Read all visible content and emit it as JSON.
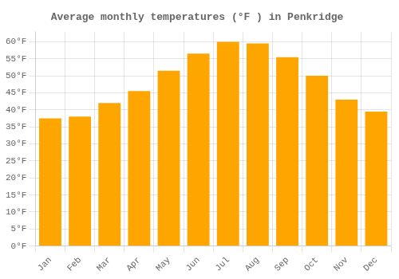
{
  "chart_data": {
    "type": "bar",
    "title": "Average monthly temperatures (°F ) in Penkridge",
    "categories": [
      "Jan",
      "Feb",
      "Mar",
      "Apr",
      "May",
      "Jun",
      "Jul",
      "Aug",
      "Sep",
      "Oct",
      "Nov",
      "Dec"
    ],
    "values": [
      37.5,
      38.0,
      42.0,
      45.5,
      51.5,
      56.5,
      60.0,
      59.5,
      55.5,
      50.0,
      43.0,
      39.5
    ],
    "color": "#FFA500",
    "ylim": [
      0,
      63
    ],
    "yticks": [
      {
        "value": 0,
        "label": "0°F"
      },
      {
        "value": 5,
        "label": "5°F"
      },
      {
        "value": 10,
        "label": "10°F"
      },
      {
        "value": 15,
        "label": "15°F"
      },
      {
        "value": 20,
        "label": "20°F"
      },
      {
        "value": 25,
        "label": "25°F"
      },
      {
        "value": 30,
        "label": "30°F"
      },
      {
        "value": 35,
        "label": "35°F"
      },
      {
        "value": 40,
        "label": "40°F"
      },
      {
        "value": 45,
        "label": "45°F"
      },
      {
        "value": 50,
        "label": "50°F"
      },
      {
        "value": 55,
        "label": "55°F"
      },
      {
        "value": 60,
        "label": "60°F"
      }
    ],
    "grid": true
  }
}
